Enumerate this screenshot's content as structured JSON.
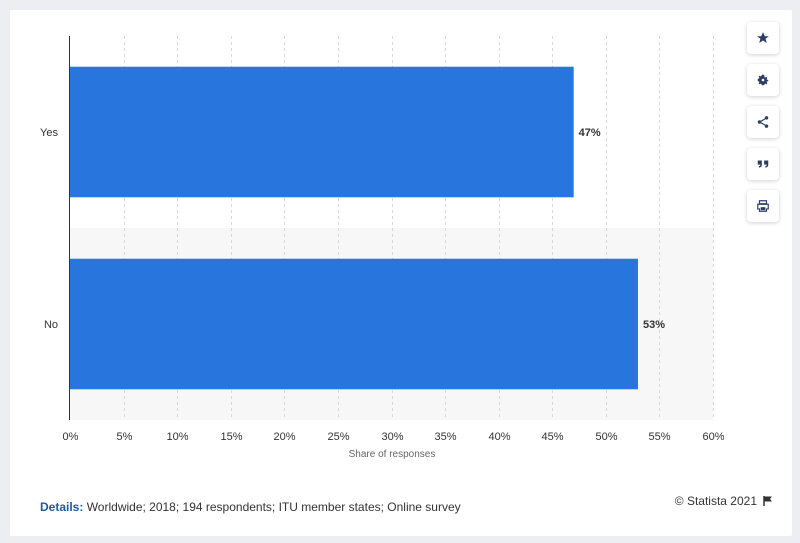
{
  "chart_data": {
    "type": "bar",
    "orientation": "horizontal",
    "categories": [
      "Yes",
      "No"
    ],
    "values": [
      47,
      53
    ],
    "value_labels": [
      "47%",
      "53%"
    ],
    "xlabel": "Share of responses",
    "ylabel": "",
    "xlim": [
      0,
      60
    ],
    "x_ticks": [
      "0%",
      "5%",
      "10%",
      "15%",
      "20%",
      "25%",
      "30%",
      "35%",
      "40%",
      "45%",
      "50%",
      "55%",
      "60%"
    ],
    "grid": true,
    "bar_color": "#2876dd"
  },
  "toolbar": {
    "icons": [
      "star-icon",
      "gear-icon",
      "share-icon",
      "quote-icon",
      "print-icon"
    ]
  },
  "footer": {
    "details_label": "Details:",
    "details_text": " Worldwide; 2018; 194 respondents; ITU member states; Online survey",
    "copyright": "© Statista 2021"
  },
  "colors": {
    "accent": "#2876dd",
    "background": "#eceef1",
    "details_label": "#1f5aa3"
  }
}
